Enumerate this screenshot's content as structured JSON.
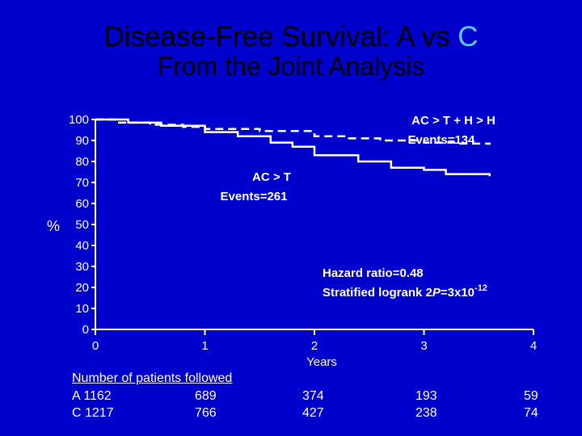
{
  "title": {
    "prefix": "Disease-Free Survival: ",
    "arm_a": "A",
    "vs": " vs ",
    "arm_c": "C",
    "subtitle": "From the Joint Analysis"
  },
  "colors": {
    "background": "#0000cc",
    "title": "#000000",
    "accent": "#5fc8ff",
    "lines": "#ffffff"
  },
  "chart_data": {
    "type": "line",
    "ylabel": "%",
    "xlabel": "Years",
    "xlim": [
      0,
      4
    ],
    "ylim": [
      0,
      100
    ],
    "xticks": [
      "0",
      "1",
      "2",
      "3",
      "4"
    ],
    "yticks": [
      "0",
      "10",
      "20",
      "30",
      "40",
      "50",
      "60",
      "70",
      "80",
      "90",
      "100"
    ],
    "series": [
      {
        "name": "AC > T + H > H",
        "style": "dashed",
        "points": [
          [
            0,
            100
          ],
          [
            0.2,
            98.5
          ],
          [
            0.5,
            97.5
          ],
          [
            0.8,
            96.5
          ],
          [
            1.0,
            95.5
          ],
          [
            1.5,
            94.5
          ],
          [
            2.0,
            92
          ],
          [
            2.3,
            91
          ],
          [
            2.6,
            90
          ],
          [
            3.0,
            89
          ],
          [
            3.3,
            88.5
          ],
          [
            3.6,
            88
          ]
        ]
      },
      {
        "name": "AC > T",
        "style": "solid",
        "points": [
          [
            0,
            100
          ],
          [
            0.3,
            98.5
          ],
          [
            0.6,
            97
          ],
          [
            1.0,
            94
          ],
          [
            1.3,
            92
          ],
          [
            1.6,
            89
          ],
          [
            1.8,
            87
          ],
          [
            2.0,
            83
          ],
          [
            2.4,
            80
          ],
          [
            2.7,
            77
          ],
          [
            3.0,
            76
          ],
          [
            3.2,
            74
          ],
          [
            3.6,
            73
          ]
        ]
      }
    ],
    "annotations": {
      "arm_c_label": "AC > T + H > H",
      "arm_c_events": "Events=134",
      "arm_a_label": "AC > T",
      "arm_a_events": "Events=261",
      "hazard": "Hazard ratio=0.48",
      "logrank_prefix": "Stratified logrank 2",
      "logrank_p": "P",
      "logrank_mid": "=3x10",
      "logrank_exp": "-12"
    }
  },
  "followed": {
    "header": "Number of patients followed",
    "rows": [
      {
        "label": "A 1162",
        "values": [
          "689",
          "374",
          "193",
          "59"
        ]
      },
      {
        "label": "C 1217",
        "values": [
          "766",
          "427",
          "238",
          "74"
        ]
      }
    ]
  }
}
